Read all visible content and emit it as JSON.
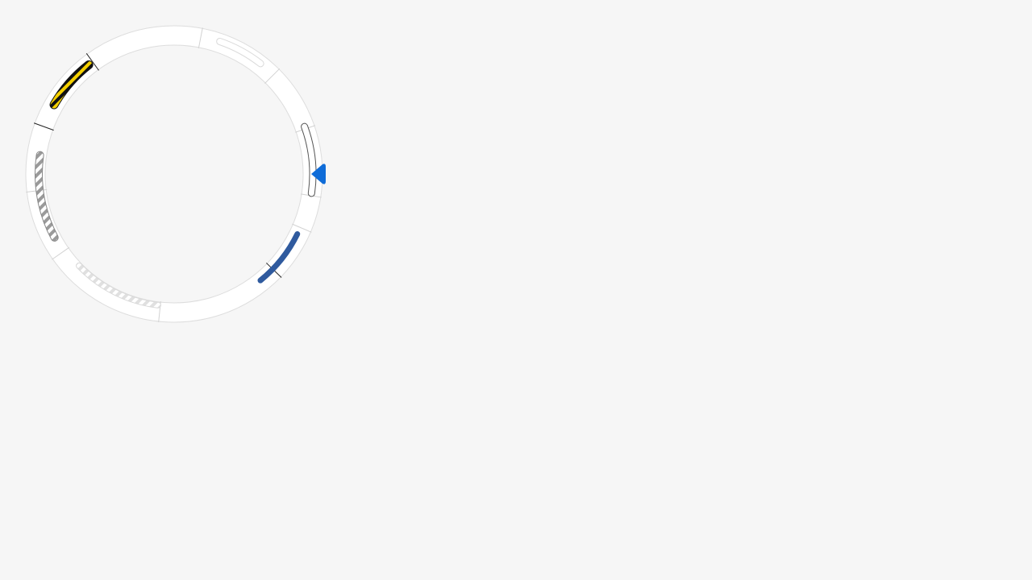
{
  "colors": {
    "background": "#f6f6f6",
    "ring_fill": "#ffffff",
    "ring_border": "#dddddd",
    "divider_light": "#d2d2d2",
    "divider_dark": "#222222",
    "pointer": "#0f6cd8"
  },
  "pointer": {
    "icon": "triangle-left-icon",
    "position": "right"
  },
  "segments": [
    {
      "name": "segment-top-right",
      "style": "outline",
      "stroke": "#dadada",
      "fill": "#ffffff"
    },
    {
      "name": "segment-right",
      "style": "outline",
      "stroke": "#555555",
      "fill": "#ffffff"
    },
    {
      "name": "segment-bottom-right",
      "style": "solid",
      "fill": "#2f5a9e"
    },
    {
      "name": "segment-bottom-left",
      "style": "striped",
      "stripe_a": "#e0e0e0",
      "stripe_b": "#ffffff",
      "stroke": "#dadada"
    },
    {
      "name": "segment-left",
      "style": "striped",
      "stripe_a": "#9a9a9a",
      "stripe_b": "#ffffff",
      "stroke": "#888888"
    },
    {
      "name": "segment-top-left",
      "style": "striped",
      "stripe_a": "#f5d000",
      "stripe_b": "#111111",
      "stroke": "#111111"
    }
  ]
}
